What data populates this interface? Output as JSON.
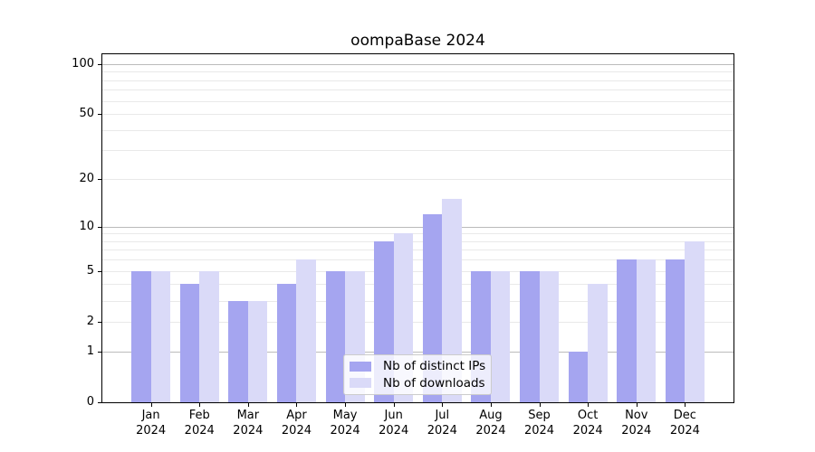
{
  "title": "oompaBase 2024",
  "chart_data": {
    "type": "bar",
    "title": "oompaBase 2024",
    "categories": [
      "Jan",
      "Feb",
      "Mar",
      "Apr",
      "May",
      "Jun",
      "Jul",
      "Aug",
      "Sep",
      "Oct",
      "Nov",
      "Dec"
    ],
    "year": "2024",
    "series": [
      {
        "name": "Nb of distinct IPs",
        "color": "#a5a5f0",
        "values": [
          5,
          4,
          3,
          4,
          5,
          8,
          12,
          5,
          5,
          1,
          6,
          6
        ]
      },
      {
        "name": "Nb of downloads",
        "color": "#dadaf8",
        "values": [
          5,
          5,
          3,
          6,
          5,
          9,
          15,
          5,
          5,
          4,
          6,
          8
        ]
      }
    ],
    "y_scale": "log10(1+y)",
    "y_ticks": [
      0,
      1,
      2,
      5,
      10,
      20,
      50,
      100
    ],
    "y_minor_gridlines": [
      3,
      4,
      6,
      7,
      8,
      9,
      30,
      40,
      60,
      70,
      80,
      90
    ],
    "y_decade_gridlines": [
      1,
      10,
      100
    ],
    "ylim": [
      0,
      114
    ],
    "xlabel": "",
    "ylabel": "",
    "grid": true,
    "legend_position": "bottom-center"
  },
  "colors": {
    "background": "#ffffff",
    "axis": "#000000",
    "gridline_decade": "#bbbbbb",
    "gridline_minor": "#e9e9e9",
    "legend_border": "#cccccc",
    "legend_background": "rgba(255,255,255,0.8)"
  }
}
